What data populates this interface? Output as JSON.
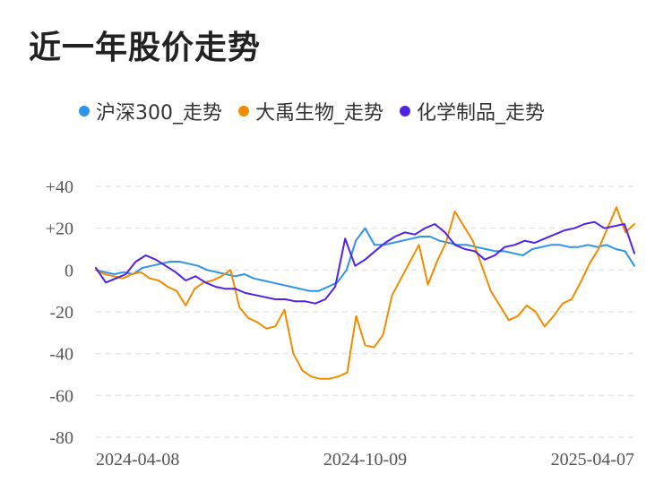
{
  "chart_data": {
    "type": "line",
    "title": "近一年股价走势",
    "legend_position": "top",
    "grid": true,
    "ylim": [
      -80,
      40
    ],
    "yticks": [
      40,
      20,
      0,
      -20,
      -40,
      -60,
      -80
    ],
    "ytick_labels": [
      "+40",
      "+20",
      "0",
      "-20",
      "-40",
      "-60",
      "-80"
    ],
    "xlabels": [
      "2024-04-08",
      "2024-10-09",
      "2025-04-07"
    ],
    "series": [
      {
        "name": "沪深300_走势",
        "color": "#2e93ea",
        "values": [
          0,
          -1,
          -2,
          -1,
          -2,
          1,
          2,
          3,
          4,
          4,
          3,
          2,
          0,
          -1,
          -2,
          -3,
          -2,
          -4,
          -5,
          -6,
          -7,
          -8,
          -9,
          -10,
          -10,
          -8,
          -6,
          0,
          14,
          20,
          12,
          12,
          13,
          14,
          15,
          16,
          16,
          14,
          13,
          12,
          12,
          11,
          10,
          9,
          9,
          8,
          7,
          10,
          11,
          12,
          12,
          11,
          11,
          12,
          11,
          12,
          10,
          9,
          2
        ]
      },
      {
        "name": "大禹生物_走势",
        "color": "#f38b00",
        "values": [
          0,
          -2,
          -3,
          -4,
          -2,
          -1,
          -4,
          -5,
          -8,
          -10,
          -17,
          -9,
          -6,
          -5,
          -3,
          0,
          -18,
          -23,
          -25,
          -28,
          -27,
          -19,
          -40,
          -48,
          -51,
          -52,
          -52,
          -51,
          -49,
          -22,
          -36,
          -37,
          -31,
          -12,
          -4,
          4,
          12,
          -7,
          4,
          13,
          28,
          21,
          14,
          2,
          -10,
          -17,
          -24,
          -22,
          -17,
          -20,
          -27,
          -22,
          -16,
          -14,
          -6,
          3,
          10,
          20,
          30,
          18,
          22
        ]
      },
      {
        "name": "化学制品_走势",
        "color": "#5021e8",
        "values": [
          1,
          -6,
          -4,
          -2,
          4,
          7,
          5,
          2,
          -1,
          -5,
          -3,
          -6,
          -8,
          -9,
          -9,
          -11,
          -12,
          -13,
          -14,
          -14,
          -15,
          -15,
          -16,
          -14,
          -8,
          15,
          2,
          5,
          9,
          13,
          16,
          18,
          17,
          20,
          22,
          18,
          12,
          10,
          9,
          5,
          7,
          11,
          12,
          14,
          13,
          15,
          17,
          19,
          20,
          22,
          23,
          20,
          21,
          22,
          8
        ]
      }
    ]
  }
}
